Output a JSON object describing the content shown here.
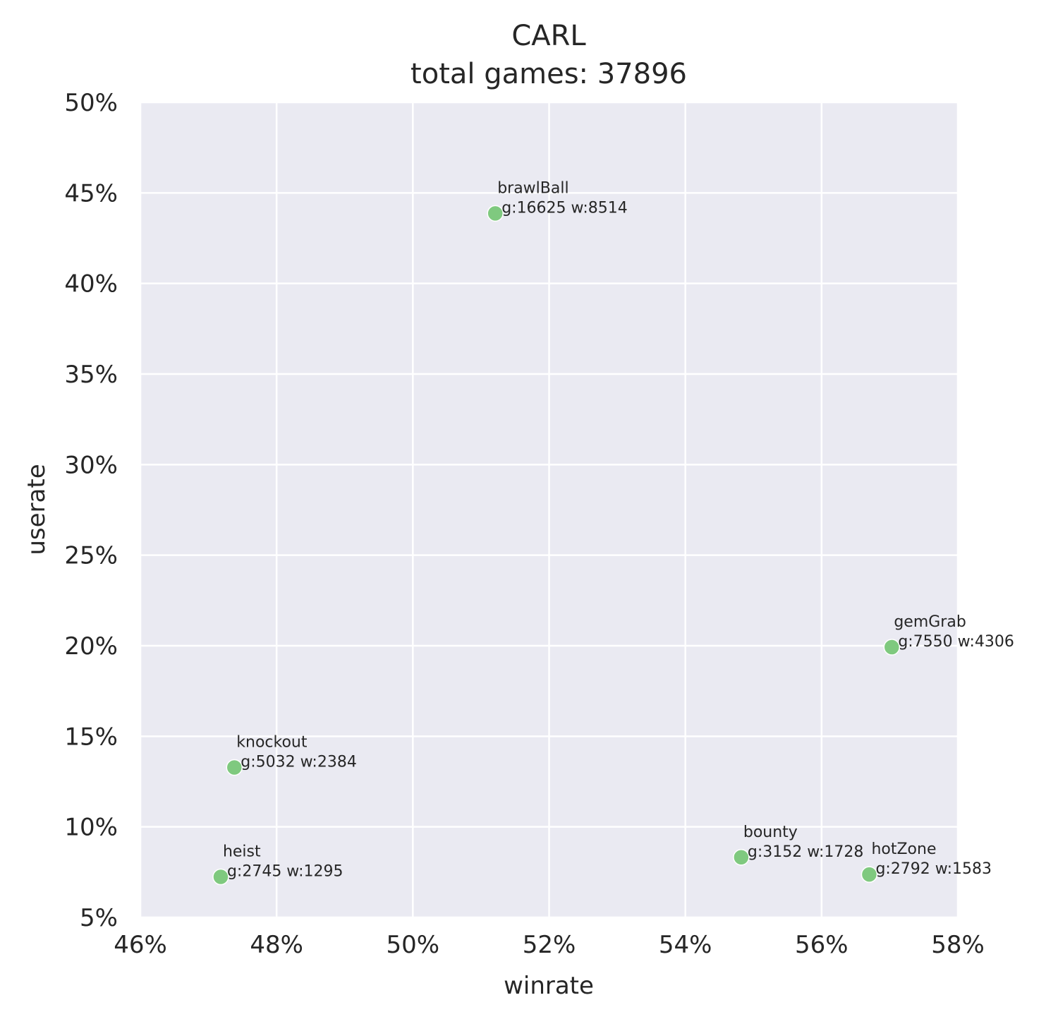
{
  "chart_data": {
    "type": "scatter",
    "title": "CARL",
    "subtitle": "total games: 37896",
    "xlabel": "winrate",
    "ylabel": "userate",
    "xlim": [
      0.46,
      0.58
    ],
    "ylim": [
      0.05,
      0.5
    ],
    "x_ticks": [
      0.46,
      0.48,
      0.5,
      0.52,
      0.54,
      0.56,
      0.58
    ],
    "x_tick_labels": [
      "46%",
      "48%",
      "50%",
      "52%",
      "54%",
      "56%",
      "58%"
    ],
    "y_ticks": [
      0.05,
      0.1,
      0.15,
      0.2,
      0.25,
      0.3,
      0.35,
      0.4,
      0.45,
      0.5
    ],
    "y_tick_labels": [
      "5%",
      "10%",
      "15%",
      "20%",
      "25%",
      "30%",
      "35%",
      "40%",
      "45%",
      "50%"
    ],
    "grid": true,
    "colors": {
      "background": "#eaeaf2",
      "grid": "#ffffff",
      "marker": "#7fc97f",
      "marker_edge": "#ffffff",
      "text": "#262626"
    },
    "points": [
      {
        "mode": "brawlBall",
        "stats": "g:16625 w:8514",
        "x": 0.5121,
        "y": 0.4387
      },
      {
        "mode": "gemGrab",
        "stats": "g:7550 w:4306",
        "x": 0.5703,
        "y": 0.1992
      },
      {
        "mode": "knockout",
        "stats": "g:5032 w:2384",
        "x": 0.4738,
        "y": 0.1328
      },
      {
        "mode": "heist",
        "stats": "g:2745 w:1295",
        "x": 0.4718,
        "y": 0.0724
      },
      {
        "mode": "bounty",
        "stats": "g:3152 w:1728",
        "x": 0.5482,
        "y": 0.0832
      },
      {
        "mode": "hotZone",
        "stats": "g:2792 w:1583",
        "x": 0.567,
        "y": 0.0737
      }
    ]
  }
}
